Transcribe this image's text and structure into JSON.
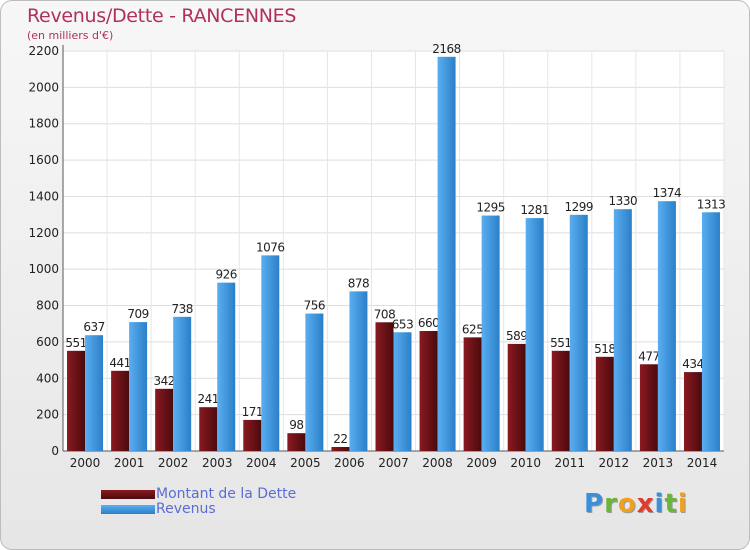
{
  "chart_data": {
    "type": "bar",
    "title": "Revenus/Dette - RANCENNES",
    "subtitle": "(en milliers d'€)",
    "xlabel": "",
    "ylabel": "",
    "ylim": [
      0,
      2200
    ],
    "yticks": [
      0,
      200,
      400,
      600,
      800,
      1000,
      1200,
      1400,
      1600,
      1800,
      2000,
      2200
    ],
    "categories": [
      "2000",
      "2001",
      "2002",
      "2003",
      "2004",
      "2005",
      "2006",
      "2007",
      "2008",
      "2009",
      "2010",
      "2011",
      "2012",
      "2013",
      "2014"
    ],
    "series": [
      {
        "name": "Montant de la Dette",
        "color": "#6b0f14",
        "values": [
          551,
          441,
          342,
          241,
          171,
          98,
          22,
          708,
          660,
          625,
          589,
          551,
          518,
          477,
          434
        ]
      },
      {
        "name": "Revenus",
        "color": "#3b94dc",
        "values": [
          637,
          709,
          738,
          926,
          1076,
          756,
          878,
          653,
          2168,
          1295,
          1281,
          1299,
          1330,
          1374,
          1313
        ]
      }
    ],
    "grid": true,
    "legend_position": "bottom-left"
  },
  "logo": {
    "letters": [
      {
        "char": "P",
        "color": "#3b8fd8"
      },
      {
        "char": "r",
        "color": "#6cb33f"
      },
      {
        "char": "o",
        "color": "#f0a020"
      },
      {
        "char": "x",
        "color": "#e03b2b"
      },
      {
        "char": "i",
        "color": "#3b8fd8"
      },
      {
        "char": "t",
        "color": "#6cb33f"
      },
      {
        "char": "i",
        "color": "#f0a020"
      }
    ]
  }
}
